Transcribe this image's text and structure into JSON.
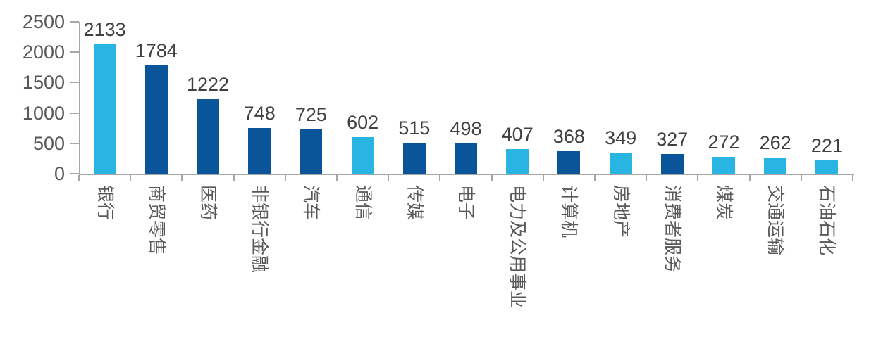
{
  "chart_data": {
    "type": "bar",
    "categories": [
      "银行",
      "商贸零售",
      "医药",
      "非银行金融",
      "汽车",
      "通信",
      "传媒",
      "电子",
      "电力及公用事业",
      "计算机",
      "房地产",
      "消费者服务",
      "煤炭",
      "交通运输",
      "石油石化"
    ],
    "values": [
      2133,
      1784,
      1222,
      748,
      725,
      602,
      515,
      498,
      407,
      368,
      349,
      327,
      272,
      262,
      221
    ],
    "bar_colors": [
      "cyan",
      "dark_blue",
      "dark_blue",
      "dark_blue",
      "dark_blue",
      "cyan",
      "dark_blue",
      "dark_blue",
      "cyan",
      "dark_blue",
      "cyan",
      "dark_blue",
      "cyan",
      "cyan",
      "cyan"
    ],
    "palette": {
      "cyan": "#29B5E1",
      "dark_blue": "#0A5499"
    },
    "yticks": [
      0,
      500,
      1000,
      1500,
      2000,
      2500
    ],
    "ylim": [
      0,
      2500
    ],
    "grid": false,
    "legend_position": "none",
    "data_labels": true,
    "axis_color": "#A6A6A6",
    "value_label_color": "#404040",
    "tick_label_color": "#595959",
    "background_color": "#FFFFFF",
    "x_label_rotation_deg": 90
  }
}
